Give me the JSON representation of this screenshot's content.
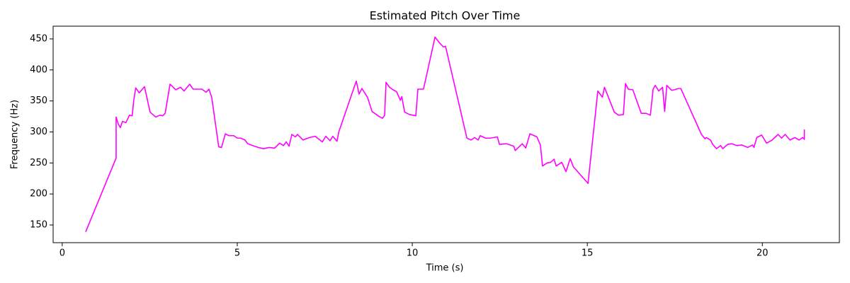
{
  "chart_data": {
    "type": "line",
    "title": "Estimated Pitch Over Time",
    "x_label": "Time (s)",
    "y_label": "Frequency (Hz)",
    "xlim": [
      -0.26,
      22.2
    ],
    "ylim": [
      121.5,
      470.5
    ],
    "xticks": [
      0,
      5,
      10,
      15,
      20
    ],
    "yticks": [
      150,
      200,
      250,
      300,
      350,
      400,
      450
    ],
    "series": [
      {
        "name": "Pitch",
        "color": "#ff00ff",
        "x": [
          0.67,
          1.54,
          1.54,
          1.6,
          1.66,
          1.72,
          1.82,
          1.92,
          2.0,
          2.04,
          2.1,
          2.2,
          2.35,
          2.51,
          2.67,
          2.79,
          2.87,
          2.94,
          3.08,
          3.24,
          3.38,
          3.48,
          3.64,
          3.74,
          3.99,
          4.11,
          4.19,
          4.27,
          4.47,
          4.55,
          4.66,
          4.76,
          4.9,
          5.0,
          5.1,
          5.22,
          5.3,
          5.44,
          5.6,
          5.75,
          5.91,
          6.07,
          6.21,
          6.32,
          6.4,
          6.48,
          6.56,
          6.66,
          6.72,
          6.88,
          7.06,
          7.23,
          7.29,
          7.43,
          7.53,
          7.65,
          7.73,
          7.85,
          7.9,
          8.4,
          8.48,
          8.56,
          8.72,
          8.85,
          8.95,
          9.05,
          9.15,
          9.21,
          9.25,
          9.35,
          9.45,
          9.55,
          9.66,
          9.7,
          9.78,
          9.92,
          10.02,
          10.1,
          10.16,
          10.32,
          10.65,
          10.77,
          10.89,
          10.95,
          11.56,
          11.68,
          11.78,
          11.88,
          11.94,
          12.09,
          12.23,
          12.43,
          12.49,
          12.69,
          12.9,
          12.94,
          13.14,
          13.24,
          13.36,
          13.56,
          13.66,
          13.72,
          13.85,
          13.95,
          14.05,
          14.11,
          14.27,
          14.39,
          14.51,
          14.6,
          15.02,
          15.3,
          15.43,
          15.49,
          15.77,
          15.89,
          16.03,
          16.09,
          16.17,
          16.3,
          16.54,
          16.68,
          16.8,
          16.88,
          16.94,
          17.04,
          17.15,
          17.21,
          17.27,
          17.41,
          17.61,
          17.67,
          18.26,
          18.36,
          18.4,
          18.52,
          18.58,
          18.69,
          18.81,
          18.87,
          19.01,
          19.13,
          19.27,
          19.41,
          19.58,
          19.72,
          19.76,
          19.84,
          19.98,
          20.12,
          20.28,
          20.45,
          20.55,
          20.65,
          20.79,
          20.93,
          21.05,
          21.15,
          21.2,
          21.2
        ],
        "values": [
          139,
          258,
          324,
          313,
          307,
          317,
          315,
          327,
          326,
          350,
          371,
          363,
          373,
          332,
          324,
          327,
          326,
          330,
          377,
          368,
          372,
          366,
          377,
          369,
          369,
          364,
          369,
          356,
          276,
          275,
          297,
          294,
          294,
          290,
          290,
          287,
          281,
          278,
          275,
          273,
          275,
          274,
          282,
          278,
          284,
          277,
          296,
          292,
          296,
          287,
          291,
          293,
          290,
          284,
          293,
          286,
          293,
          285,
          300,
          382,
          361,
          370,
          356,
          333,
          329,
          325,
          322,
          327,
          380,
          372,
          368,
          365,
          351,
          357,
          332,
          328,
          327,
          326,
          369,
          369,
          453,
          444,
          437,
          438,
          290,
          287,
          291,
          287,
          294,
          290,
          290,
          292,
          280,
          281,
          277,
          270,
          281,
          274,
          297,
          292,
          279,
          245,
          250,
          251,
          256,
          245,
          251,
          236,
          257,
          244,
          217,
          366,
          356,
          372,
          332,
          327,
          328,
          378,
          369,
          368,
          330,
          330,
          327,
          369,
          375,
          366,
          372,
          333,
          375,
          367,
          370,
          370,
          296,
          289,
          291,
          287,
          280,
          273,
          278,
          273,
          280,
          281,
          278,
          279,
          275,
          279,
          275,
          291,
          295,
          282,
          287,
          296,
          290,
          296,
          287,
          291,
          287,
          291,
          288,
          304
        ]
      }
    ]
  }
}
